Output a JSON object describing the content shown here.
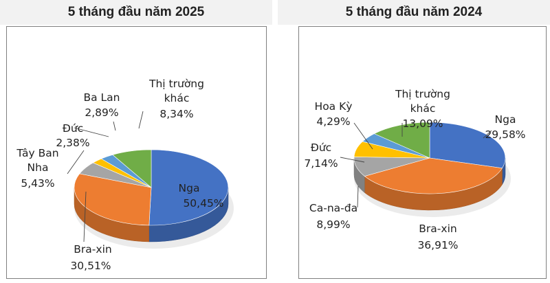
{
  "chart_data": [
    {
      "type": "pie",
      "title": "5 tháng đầu năm 2025",
      "slices": [
        {
          "label": "Nga",
          "value": 50.45,
          "display": "50,45%",
          "color": "#4472c4"
        },
        {
          "label": "Bra-xin",
          "value": 30.51,
          "display": "30,51%",
          "color": "#ed7d31"
        },
        {
          "label": "Tây Ban Nha",
          "value": 5.43,
          "display": "5,43%",
          "color": "#a5a5a5"
        },
        {
          "label": "Đức",
          "value": 2.38,
          "display": "2,38%",
          "color": "#ffc000"
        },
        {
          "label": "Ba Lan",
          "value": 2.89,
          "display": "2,89%",
          "color": "#5b9bd5"
        },
        {
          "label": "Thị trường khác",
          "value": 8.34,
          "display": "8,34%",
          "color": "#70ad47"
        }
      ]
    },
    {
      "type": "pie",
      "title": "5 tháng đầu năm 2024",
      "slices": [
        {
          "label": "Nga",
          "value": 29.58,
          "display": "29,58%",
          "color": "#4472c4"
        },
        {
          "label": "Bra-xin",
          "value": 36.91,
          "display": "36,91%",
          "color": "#ed7d31"
        },
        {
          "label": "Ca-na-đa",
          "value": 8.99,
          "display": "8,99%",
          "color": "#a5a5a5"
        },
        {
          "label": "Đức",
          "value": 7.14,
          "display": "7,14%",
          "color": "#ffc000"
        },
        {
          "label": "Hoa Kỳ",
          "value": 4.29,
          "display": "4,29%",
          "color": "#5b9bd5"
        },
        {
          "label": "Thị trường khác",
          "value": 13.09,
          "display": "13,09%",
          "color": "#70ad47"
        }
      ]
    }
  ]
}
